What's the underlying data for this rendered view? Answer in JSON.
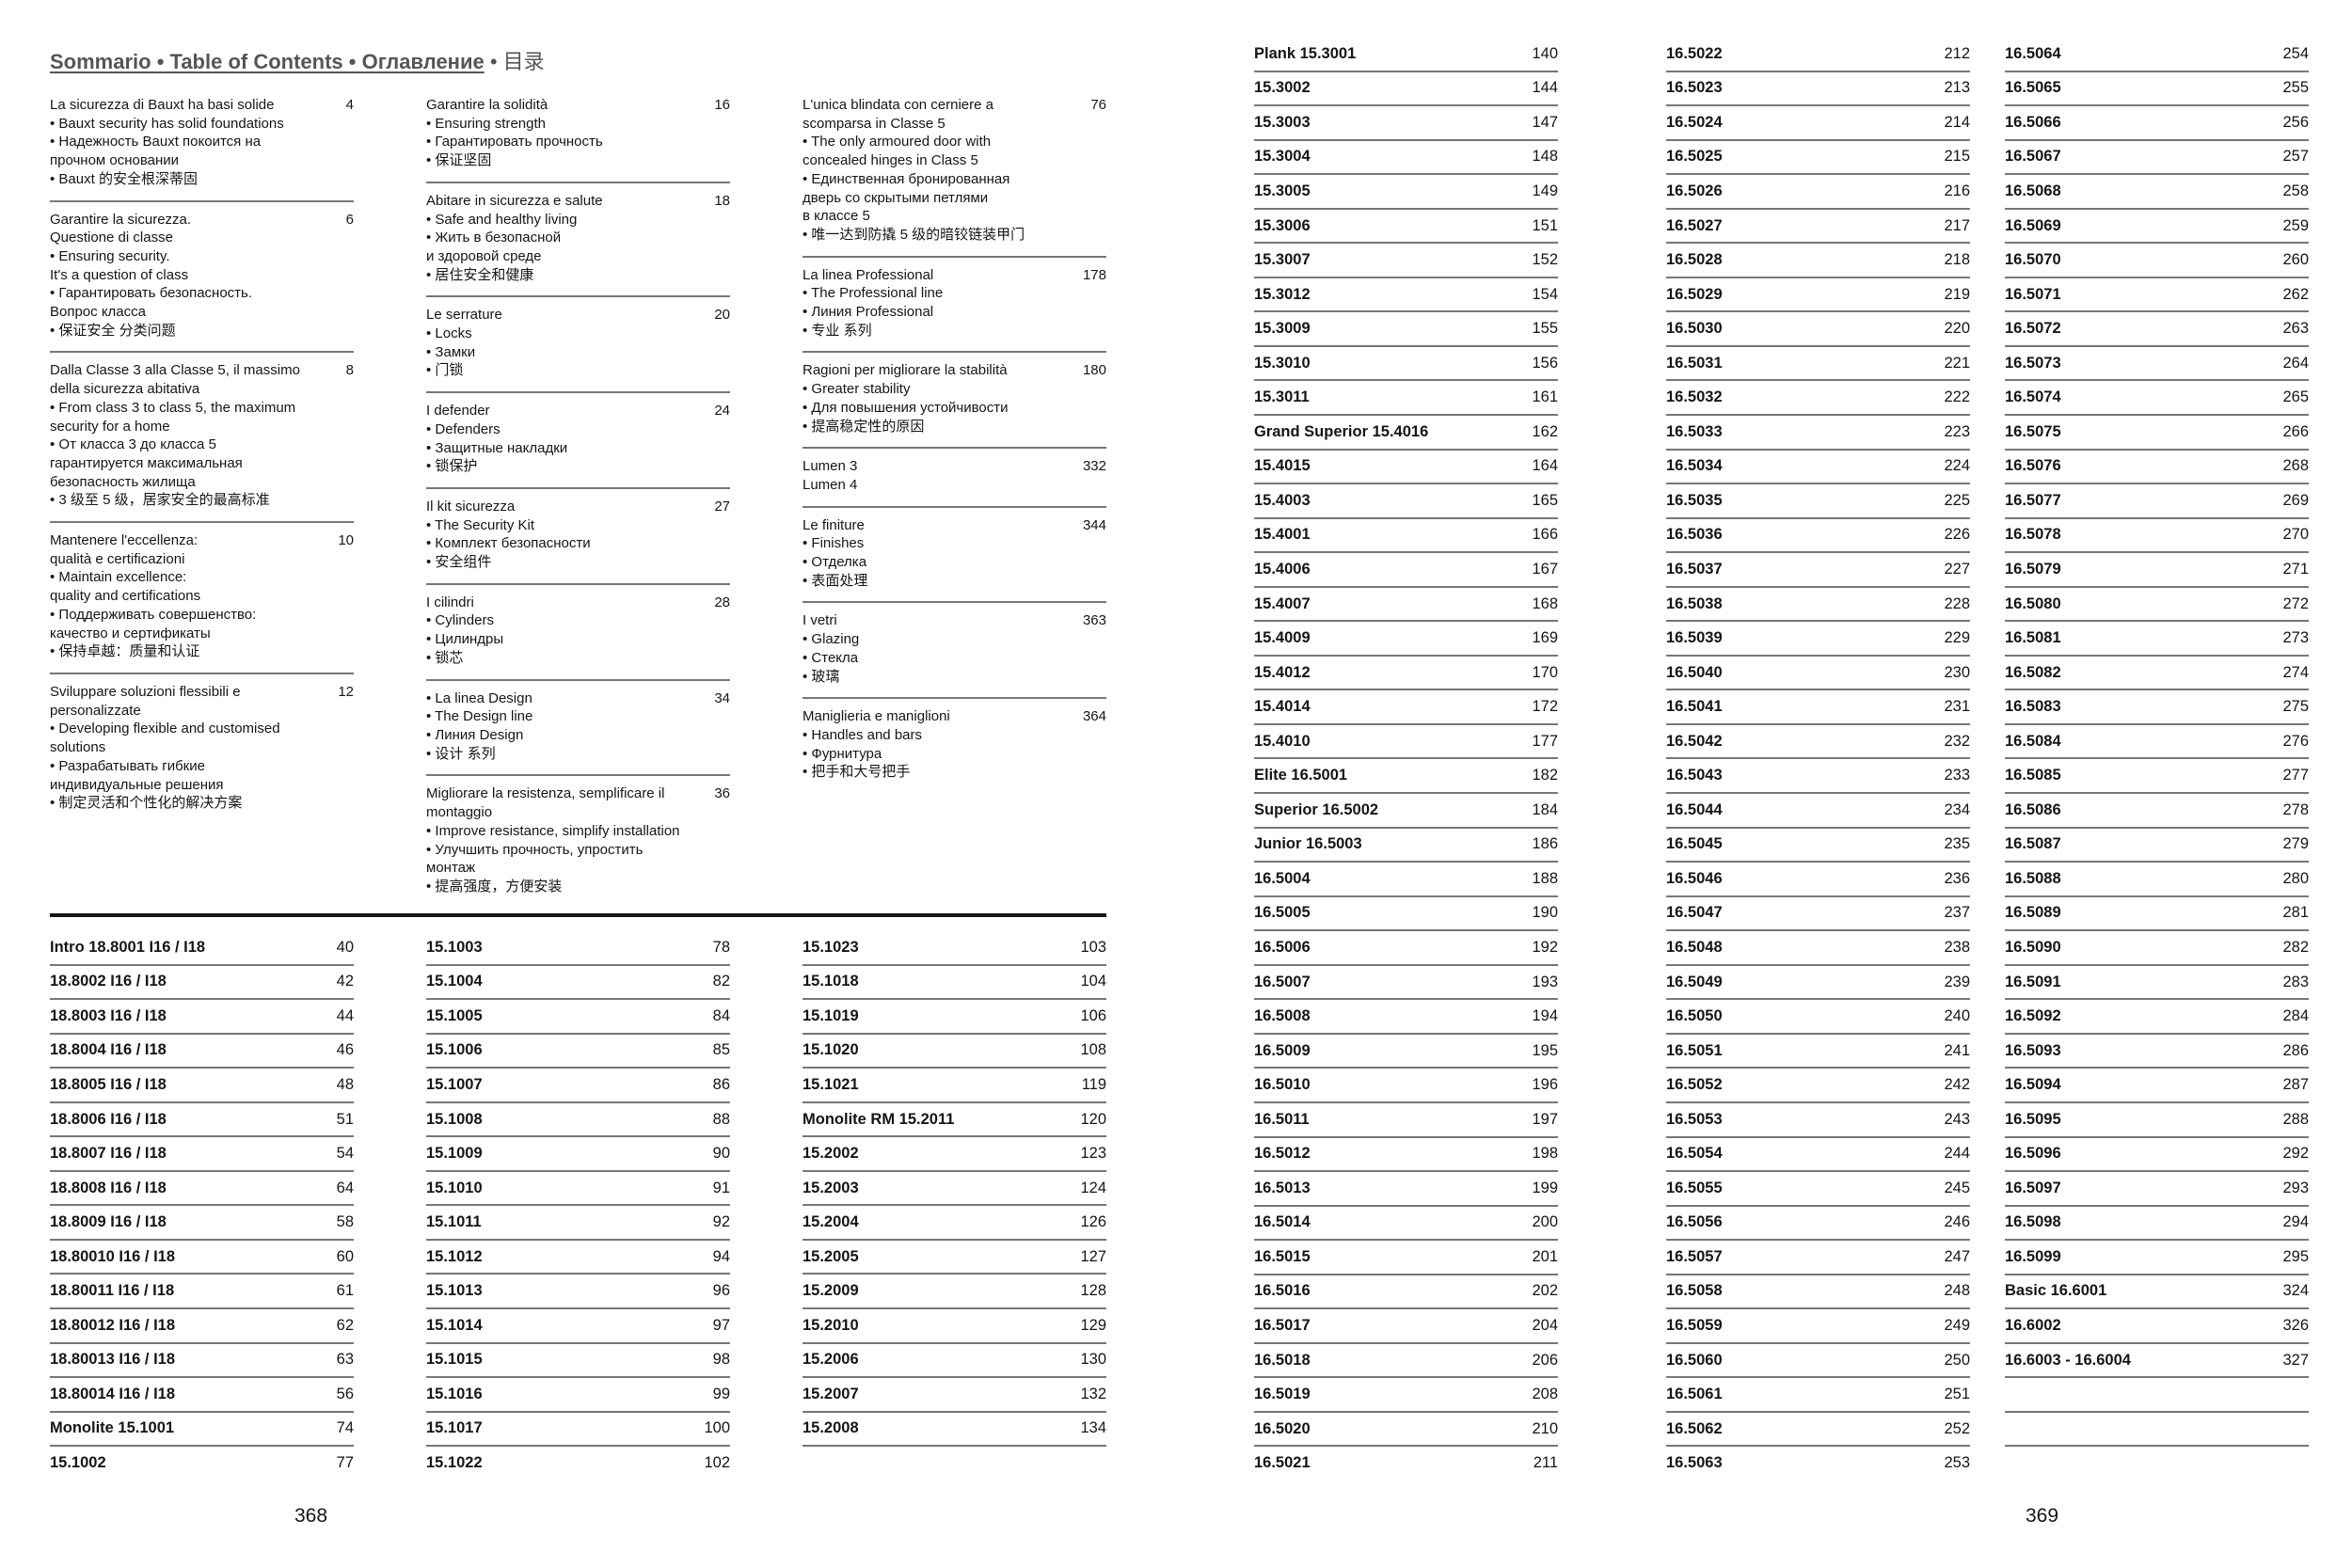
{
  "title": {
    "main": "Sommario • Table of Contents • Оглавление",
    "suffix": " • 目录"
  },
  "left_page": {
    "page_number": "368",
    "chapters": [
      [
        {
          "lines": [
            "La sicurezza di Bauxt ha basi solide",
            "• Bauxt security has solid foundations",
            "• Надежность Bauxt покоится на",
            "прочном основании",
            "• Bauxt 的安全根深蒂固"
          ],
          "page": "4"
        },
        {
          "lines": [
            "Garantire la sicurezza.",
            "Questione di classe",
            "• Ensuring security.",
            "It's a question of class",
            "• Гарантировать безопасность.",
            "Вопрос класса",
            "• 保证安全 分类问题"
          ],
          "page": "6"
        },
        {
          "lines": [
            "Dalla Classe 3 alla Classe 5, il massimo",
            "della sicurezza abitativa",
            "• From class 3 to class 5, the maximum",
            "security for a home",
            "• От класса 3 до класса 5",
            "гарантируется максимальная",
            "безопасность жилища",
            "• 3 级至 5 级，居家安全的最高标准"
          ],
          "page": "8"
        },
        {
          "lines": [
            "Mantenere l'eccellenza:",
            "qualità e certificazioni",
            "• Maintain excellence:",
            "quality and certifications",
            "• Поддерживать совершенство:",
            "качество и сертификаты",
            "• 保持卓越：质量和认证"
          ],
          "page": "10"
        },
        {
          "lines": [
            "Sviluppare soluzioni flessibili e",
            "personalizzate",
            "• Developing flexible and customised",
            "solutions",
            "• Разрабатывать гибкие",
            "индивидуальные решения",
            "• 制定灵活和个性化的解决方案"
          ],
          "page": "12"
        }
      ],
      [
        {
          "lines": [
            "Garantire la solidità",
            "• Ensuring strength",
            "• Гарантировать прочность",
            "• 保证坚固"
          ],
          "page": "16"
        },
        {
          "lines": [
            "Abitare in sicurezza e salute",
            "• Safe and healthy living",
            "• Жить в безопасной",
            "и здоровой среде",
            "• 居住安全和健康"
          ],
          "page": "18"
        },
        {
          "lines": [
            "Le serrature",
            "• Locks",
            "• Замки",
            "• 门锁"
          ],
          "page": "20"
        },
        {
          "lines": [
            "I defender",
            "• Defenders",
            "• Защитные накладки",
            "• 锁保护"
          ],
          "page": "24"
        },
        {
          "lines": [
            "Il kit sicurezza",
            "• The Security Kit",
            "• Комплект безопасности",
            "• 安全组件"
          ],
          "page": "27"
        },
        {
          "lines": [
            "I cilindri",
            "• Cylinders",
            "• Цилиндры",
            "• 锁芯"
          ],
          "page": "28"
        },
        {
          "lines": [
            "• La linea Design",
            "• The Design line",
            "• Линия Design",
            "• 设计 系列"
          ],
          "page": "34"
        },
        {
          "lines": [
            "Migliorare la resistenza, semplificare il",
            "montaggio",
            "• Improve resistance, simplify installation",
            "• Улучшить прочность, упростить",
            "монтаж",
            "• 提高强度，方便安装"
          ],
          "page": "36"
        }
      ],
      [
        {
          "lines": [
            "L'unica blindata con cerniere a",
            "scomparsa in Classe 5",
            "• The only armoured door with",
            "concealed hinges in Class 5",
            "• Единственная бронированная",
            "дверь со скрытыми петлями",
            "в классе 5",
            "• 唯一达到防撬 5 级的暗铰链装甲门"
          ],
          "page": "76"
        },
        {
          "lines": [
            "La linea Professional",
            "• The Professional line",
            "• Линия Professional",
            "• 专业 系列"
          ],
          "page": "178"
        },
        {
          "lines": [
            "Ragioni per migliorare la stabilità",
            "• Greater stability",
            "• Для повышения устойчивости",
            "• 提高稳定性的原因"
          ],
          "page": "180"
        },
        {
          "lines": [
            "Lumen 3",
            "Lumen 4"
          ],
          "page": "332"
        },
        {
          "lines": [
            "Le finiture",
            "• Finishes",
            "• Отделка",
            "• 表面处理"
          ],
          "page": "344"
        },
        {
          "lines": [
            "I vetri",
            "• Glazing",
            "• Стекла",
            "• 玻璃"
          ],
          "page": "363"
        },
        {
          "lines": [
            "Maniglieria e maniglioni",
            "• Handles and bars",
            "• Фурнитура",
            "• 把手和大号把手"
          ],
          "page": "364"
        }
      ]
    ],
    "index_columns": [
      [
        {
          "label": "Intro 18.8001 I16 / I18",
          "page": "40"
        },
        {
          "label": "18.8002 I16 / I18",
          "page": "42"
        },
        {
          "label": "18.8003 I16 / I18",
          "page": "44"
        },
        {
          "label": "18.8004 I16 / I18",
          "page": "46"
        },
        {
          "label": "18.8005 I16 / I18",
          "page": "48"
        },
        {
          "label": "18.8006 I16 / I18",
          "page": "51"
        },
        {
          "label": "18.8007 I16 / I18",
          "page": "54"
        },
        {
          "label": "18.8008 I16 / I18",
          "page": "64"
        },
        {
          "label": "18.8009 I16 / I18",
          "page": "58"
        },
        {
          "label": "18.80010 I16 / I18",
          "page": "60"
        },
        {
          "label": "18.80011 I16 / I18",
          "page": "61"
        },
        {
          "label": "18.80012 I16 / I18",
          "page": "62"
        },
        {
          "label": "18.80013 I16 / I18",
          "page": "63"
        },
        {
          "label": "18.80014 I16 / I18",
          "page": "56"
        },
        {
          "label": "Monolite 15.1001",
          "page": "74"
        },
        {
          "label": "15.1002",
          "page": "77"
        }
      ],
      [
        {
          "label": "15.1003",
          "page": "78"
        },
        {
          "label": "15.1004",
          "page": "82"
        },
        {
          "label": "15.1005",
          "page": "84"
        },
        {
          "label": "15.1006",
          "page": "85"
        },
        {
          "label": "15.1007",
          "page": "86"
        },
        {
          "label": "15.1008",
          "page": "88"
        },
        {
          "label": "15.1009",
          "page": "90"
        },
        {
          "label": "15.1010",
          "page": "91"
        },
        {
          "label": "15.1011",
          "page": "92"
        },
        {
          "label": "15.1012",
          "page": "94"
        },
        {
          "label": "15.1013",
          "page": "96"
        },
        {
          "label": "15.1014",
          "page": "97"
        },
        {
          "label": "15.1015",
          "page": "98"
        },
        {
          "label": "15.1016",
          "page": "99"
        },
        {
          "label": "15.1017",
          "page": "100"
        },
        {
          "label": "15.1022",
          "page": "102"
        }
      ],
      [
        {
          "label": "15.1023",
          "page": "103"
        },
        {
          "label": "15.1018",
          "page": "104"
        },
        {
          "label": "15.1019",
          "page": "106"
        },
        {
          "label": "15.1020",
          "page": "108"
        },
        {
          "label": "15.1021",
          "page": "119"
        },
        {
          "label": "Monolite RM 15.2011",
          "page": "120"
        },
        {
          "label": "15.2002",
          "page": "123"
        },
        {
          "label": "15.2003",
          "page": "124"
        },
        {
          "label": "15.2004",
          "page": "126"
        },
        {
          "label": "15.2005",
          "page": "127"
        },
        {
          "label": "15.2009",
          "page": "128"
        },
        {
          "label": "15.2010",
          "page": "129"
        },
        {
          "label": "15.2006",
          "page": "130"
        },
        {
          "label": "15.2007",
          "page": "132"
        },
        {
          "label": "15.2008",
          "page": "134"
        }
      ]
    ]
  },
  "right_page": {
    "page_number": "369",
    "index_columns": [
      [
        {
          "label": "Plank 15.3001",
          "page": "140"
        },
        {
          "label": "15.3002",
          "page": "144"
        },
        {
          "label": "15.3003",
          "page": "147"
        },
        {
          "label": "15.3004",
          "page": "148"
        },
        {
          "label": "15.3005",
          "page": "149"
        },
        {
          "label": "15.3006",
          "page": "151"
        },
        {
          "label": "15.3007",
          "page": "152"
        },
        {
          "label": "15.3012",
          "page": "154"
        },
        {
          "label": "15.3009",
          "page": "155"
        },
        {
          "label": "15.3010",
          "page": "156"
        },
        {
          "label": "15.3011",
          "page": "161"
        },
        {
          "label": "Grand Superior 15.4016",
          "page": "162"
        },
        {
          "label": "15.4015",
          "page": "164"
        },
        {
          "label": "15.4003",
          "page": "165"
        },
        {
          "label": "15.4001",
          "page": "166"
        },
        {
          "label": "15.4006",
          "page": "167"
        },
        {
          "label": "15.4007",
          "page": "168"
        },
        {
          "label": "15.4009",
          "page": "169"
        },
        {
          "label": "15.4012",
          "page": "170"
        },
        {
          "label": "15.4014",
          "page": "172"
        },
        {
          "label": "15.4010",
          "page": "177"
        },
        {
          "label": "Elite 16.5001",
          "page": "182"
        },
        {
          "label": "Superior 16.5002",
          "page": "184"
        },
        {
          "label": "Junior 16.5003",
          "page": "186"
        },
        {
          "label": "16.5004",
          "page": "188"
        },
        {
          "label": "16.5005",
          "page": "190"
        },
        {
          "label": "16.5006",
          "page": "192"
        },
        {
          "label": "16.5007",
          "page": "193"
        },
        {
          "label": "16.5008",
          "page": "194"
        },
        {
          "label": "16.5009",
          "page": "195"
        },
        {
          "label": "16.5010",
          "page": "196"
        },
        {
          "label": "16.5011",
          "page": "197"
        },
        {
          "label": "16.5012",
          "page": "198"
        },
        {
          "label": "16.5013",
          "page": "199"
        },
        {
          "label": "16.5014",
          "page": "200"
        },
        {
          "label": "16.5015",
          "page": "201"
        },
        {
          "label": "16.5016",
          "page": "202"
        },
        {
          "label": "16.5017",
          "page": "204"
        },
        {
          "label": "16.5018",
          "page": "206"
        },
        {
          "label": "16.5019",
          "page": "208"
        },
        {
          "label": "16.5020",
          "page": "210"
        },
        {
          "label": "16.5021",
          "page": "211"
        }
      ],
      [
        {
          "label": "16.5022",
          "page": "212"
        },
        {
          "label": "16.5023",
          "page": "213"
        },
        {
          "label": "16.5024",
          "page": "214"
        },
        {
          "label": "16.5025",
          "page": "215"
        },
        {
          "label": "16.5026",
          "page": "216"
        },
        {
          "label": "16.5027",
          "page": "217"
        },
        {
          "label": "16.5028",
          "page": "218"
        },
        {
          "label": "16.5029",
          "page": "219"
        },
        {
          "label": "16.5030",
          "page": "220"
        },
        {
          "label": "16.5031",
          "page": "221"
        },
        {
          "label": "16.5032",
          "page": "222"
        },
        {
          "label": "16.5033",
          "page": "223"
        },
        {
          "label": "16.5034",
          "page": "224"
        },
        {
          "label": "16.5035",
          "page": "225"
        },
        {
          "label": "16.5036",
          "page": "226"
        },
        {
          "label": "16.5037",
          "page": "227"
        },
        {
          "label": "16.5038",
          "page": "228"
        },
        {
          "label": "16.5039",
          "page": "229"
        },
        {
          "label": "16.5040",
          "page": "230"
        },
        {
          "label": "16.5041",
          "page": "231"
        },
        {
          "label": "16.5042",
          "page": "232"
        },
        {
          "label": "16.5043",
          "page": "233"
        },
        {
          "label": "16.5044",
          "page": "234"
        },
        {
          "label": "16.5045",
          "page": "235"
        },
        {
          "label": "16.5046",
          "page": "236"
        },
        {
          "label": "16.5047",
          "page": "237"
        },
        {
          "label": "16.5048",
          "page": "238"
        },
        {
          "label": "16.5049",
          "page": "239"
        },
        {
          "label": "16.5050",
          "page": "240"
        },
        {
          "label": "16.5051",
          "page": "241"
        },
        {
          "label": "16.5052",
          "page": "242"
        },
        {
          "label": "16.5053",
          "page": "243"
        },
        {
          "label": "16.5054",
          "page": "244"
        },
        {
          "label": "16.5055",
          "page": "245"
        },
        {
          "label": "16.5056",
          "page": "246"
        },
        {
          "label": "16.5057",
          "page": "247"
        },
        {
          "label": "16.5058",
          "page": "248"
        },
        {
          "label": "16.5059",
          "page": "249"
        },
        {
          "label": "16.5060",
          "page": "250"
        },
        {
          "label": "16.5061",
          "page": "251"
        },
        {
          "label": "16.5062",
          "page": "252"
        },
        {
          "label": "16.5063",
          "page": "253"
        }
      ],
      [
        {
          "label": "16.5064",
          "page": "254"
        },
        {
          "label": "16.5065",
          "page": "255"
        },
        {
          "label": "16.5066",
          "page": "256"
        },
        {
          "label": "16.5067",
          "page": "257"
        },
        {
          "label": "16.5068",
          "page": "258"
        },
        {
          "label": "16.5069",
          "page": "259"
        },
        {
          "label": "16.5070",
          "page": "260"
        },
        {
          "label": "16.5071",
          "page": "262"
        },
        {
          "label": "16.5072",
          "page": "263"
        },
        {
          "label": "16.5073",
          "page": "264"
        },
        {
          "label": "16.5074",
          "page": "265"
        },
        {
          "label": "16.5075",
          "page": "266"
        },
        {
          "label": "16.5076",
          "page": "268"
        },
        {
          "label": "16.5077",
          "page": "269"
        },
        {
          "label": "16.5078",
          "page": "270"
        },
        {
          "label": "16.5079",
          "page": "271"
        },
        {
          "label": "16.5080",
          "page": "272"
        },
        {
          "label": "16.5081",
          "page": "273"
        },
        {
          "label": "16.5082",
          "page": "274"
        },
        {
          "label": "16.5083",
          "page": "275"
        },
        {
          "label": "16.5084",
          "page": "276"
        },
        {
          "label": "16.5085",
          "page": "277"
        },
        {
          "label": "16.5086",
          "page": "278"
        },
        {
          "label": "16.5087",
          "page": "279"
        },
        {
          "label": "16.5088",
          "page": "280"
        },
        {
          "label": "16.5089",
          "page": "281"
        },
        {
          "label": "16.5090",
          "page": "282"
        },
        {
          "label": "16.5091",
          "page": "283"
        },
        {
          "label": "16.5092",
          "page": "284"
        },
        {
          "label": "16.5093",
          "page": "286"
        },
        {
          "label": "16.5094",
          "page": "287"
        },
        {
          "label": "16.5095",
          "page": "288"
        },
        {
          "label": "16.5096",
          "page": "292"
        },
        {
          "label": "16.5097",
          "page": "293"
        },
        {
          "label": "16.5098",
          "page": "294"
        },
        {
          "label": "16.5099",
          "page": "295"
        },
        {
          "label": "Basic 16.6001",
          "page": "324"
        },
        {
          "label": "16.6002",
          "page": "326"
        },
        {
          "label": "16.6003 - 16.6004",
          "page": "327"
        }
      ]
    ]
  }
}
